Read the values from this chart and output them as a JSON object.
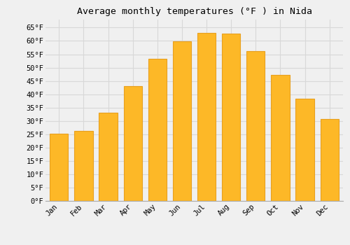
{
  "title": "Average monthly temperatures (°F ) in Nida",
  "months": [
    "Jan",
    "Feb",
    "Mar",
    "Apr",
    "May",
    "Jun",
    "Jul",
    "Aug",
    "Sep",
    "Oct",
    "Nov",
    "Dec"
  ],
  "values": [
    25.2,
    26.2,
    33.1,
    43.0,
    53.2,
    59.9,
    63.1,
    62.8,
    56.1,
    47.3,
    38.3,
    30.7
  ],
  "bar_color": "#FDB827",
  "bar_edge_color": "#E8A020",
  "background_color": "#f0f0f0",
  "grid_color": "#d8d8d8",
  "ylim": [
    0,
    68
  ],
  "yticks": [
    0,
    5,
    10,
    15,
    20,
    25,
    30,
    35,
    40,
    45,
    50,
    55,
    60,
    65
  ],
  "ytick_labels": [
    "0°F",
    "5°F",
    "10°F",
    "15°F",
    "20°F",
    "25°F",
    "30°F",
    "35°F",
    "40°F",
    "45°F",
    "50°F",
    "55°F",
    "60°F",
    "65°F"
  ],
  "tick_font_size": 7.5,
  "title_font_size": 9.5,
  "font_family": "monospace"
}
